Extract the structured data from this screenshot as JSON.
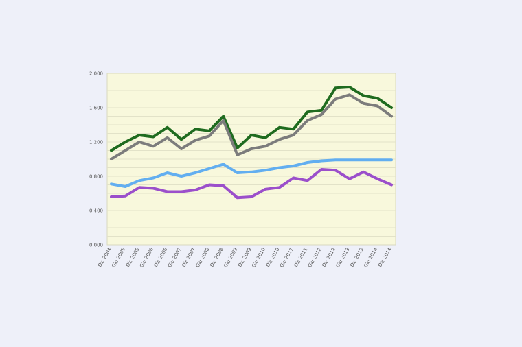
{
  "chart_data": {
    "type": "line",
    "title": "",
    "xlabel": "",
    "ylabel": "",
    "ylim": [
      0,
      2
    ],
    "y_ticks": [
      "2.000",
      "1.600",
      "1.200",
      "0.800",
      "0.400",
      "0.000"
    ],
    "grid": true,
    "x_ticks": [
      "Dic 2004",
      "Giu 2005",
      "Dic 2005",
      "Giu 2006",
      "Dic 2006",
      "Giu 2007",
      "Dic 2007",
      "Giu 2008",
      "Dic 2008",
      "Giu 2009",
      "Dic 2009",
      "Giu 2010",
      "Dic 2010",
      "Giu 2011",
      "Dic 2011",
      "Giu 2012",
      "Dic 2012",
      "Giu 2013",
      "Dic 2013",
      "Giu 2014",
      "Dic 2014"
    ],
    "series": [
      {
        "color": "#1f6b1f",
        "values": [
          1.1,
          1.2,
          1.28,
          1.26,
          1.37,
          1.23,
          1.35,
          1.33,
          1.5,
          1.13,
          1.28,
          1.25,
          1.37,
          1.35,
          1.55,
          1.57,
          1.83,
          1.84,
          1.74,
          1.71,
          1.6
        ]
      },
      {
        "color": "#7c7c7c",
        "values": [
          1.0,
          1.1,
          1.2,
          1.15,
          1.25,
          1.12,
          1.22,
          1.27,
          1.45,
          1.05,
          1.12,
          1.15,
          1.23,
          1.28,
          1.45,
          1.52,
          1.7,
          1.75,
          1.65,
          1.62,
          1.5
        ]
      },
      {
        "color": "#62aef0",
        "values": [
          0.71,
          0.68,
          0.75,
          0.78,
          0.84,
          0.8,
          0.84,
          0.89,
          0.94,
          0.84,
          0.85,
          0.87,
          0.9,
          0.92,
          0.96,
          0.98,
          0.99,
          0.99,
          0.99,
          0.99,
          0.99
        ]
      },
      {
        "color": "#9b4fcb",
        "values": [
          0.56,
          0.57,
          0.67,
          0.66,
          0.62,
          0.62,
          0.64,
          0.7,
          0.69,
          0.55,
          0.56,
          0.65,
          0.67,
          0.78,
          0.75,
          0.88,
          0.87,
          0.77,
          0.85,
          0.77,
          0.7
        ]
      }
    ]
  }
}
